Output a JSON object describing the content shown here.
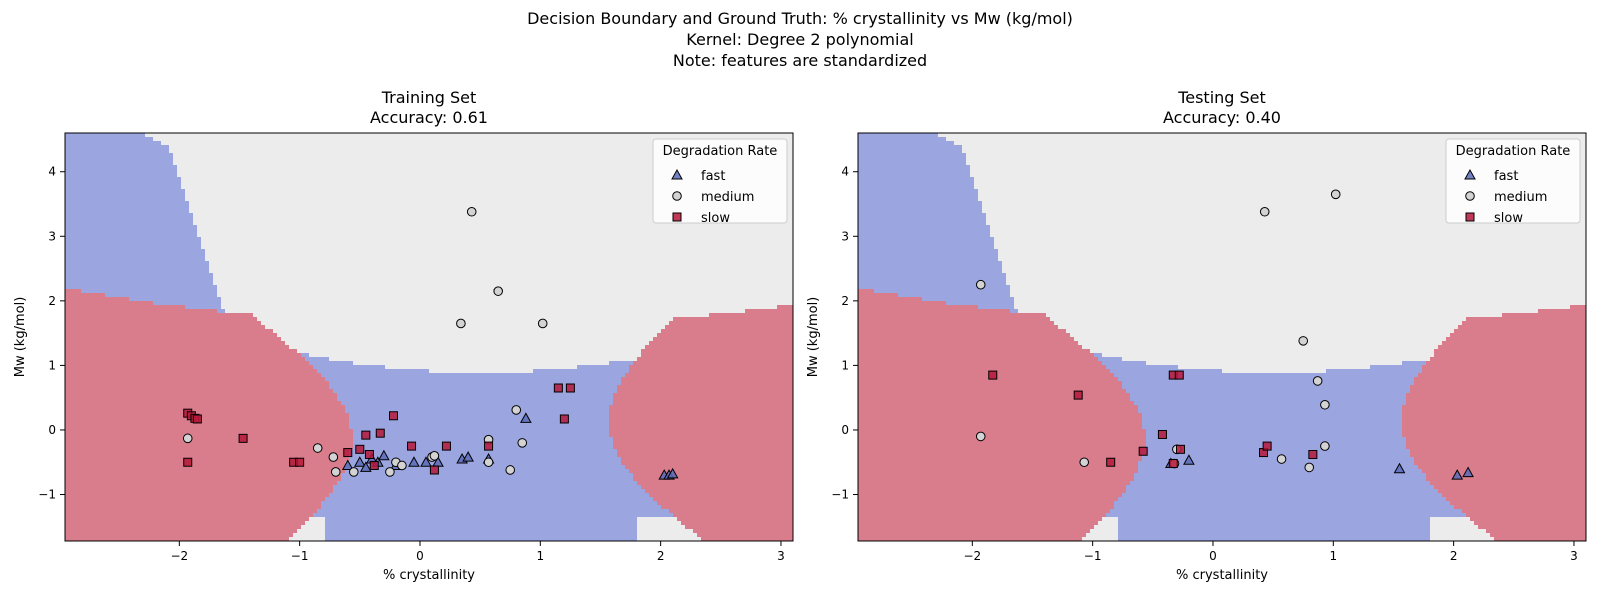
{
  "suptitle": {
    "line1": "Decision Boundary and Ground Truth: % crystallinity vs Mw (kg/mol)",
    "line2": "Kernel: Degree 2 polynomial",
    "line3": "Note: features are standardized"
  },
  "colors": {
    "fast_region": "#9ba5e0",
    "medium_region": "#ececec",
    "slow_region": "#d97c8c",
    "fast_marker": "#5a6bb8",
    "medium_marker": "#d3d3d3",
    "slow_marker": "#b5183a"
  },
  "chart_data": [
    {
      "type": "scatter",
      "title": "Training Set",
      "subtitle": "Accuracy: 0.61",
      "xlabel": "% crystallinity",
      "ylabel": "Mw (kg/mol)",
      "xlim": [
        -2.95,
        3.1
      ],
      "ylim": [
        -1.72,
        4.6
      ],
      "xticks": [
        -2,
        -1,
        0,
        1,
        2,
        3
      ],
      "yticks": [
        -1,
        0,
        1,
        2,
        3,
        4
      ],
      "legend": {
        "title": "Degradation Rate",
        "placement": "top-right",
        "entries": [
          "fast",
          "medium",
          "slow"
        ]
      },
      "regions": {
        "description_classes": [
          "fast",
          "medium",
          "slow"
        ]
      },
      "series": [
        {
          "name": "fast",
          "marker": "triangle",
          "points": [
            [
              -0.6,
              -0.55
            ],
            [
              -0.5,
              -0.5
            ],
            [
              -0.45,
              -0.58
            ],
            [
              -0.4,
              -0.45
            ],
            [
              -0.35,
              -0.5
            ],
            [
              -0.3,
              -0.4
            ],
            [
              -0.2,
              -0.55
            ],
            [
              -0.05,
              -0.5
            ],
            [
              0.05,
              -0.5
            ],
            [
              0.15,
              -0.5
            ],
            [
              0.35,
              -0.45
            ],
            [
              0.4,
              -0.42
            ],
            [
              0.57,
              -0.45
            ],
            [
              0.88,
              0.18
            ],
            [
              2.03,
              -0.7
            ],
            [
              2.07,
              -0.7
            ],
            [
              2.1,
              -0.68
            ]
          ]
        },
        {
          "name": "medium",
          "marker": "circle",
          "points": [
            [
              0.43,
              3.38
            ],
            [
              0.65,
              2.15
            ],
            [
              0.34,
              1.65
            ],
            [
              1.02,
              1.65
            ],
            [
              0.8,
              0.31
            ],
            [
              -1.93,
              -0.13
            ],
            [
              -0.85,
              -0.28
            ],
            [
              -0.7,
              -0.65
            ],
            [
              -0.55,
              -0.65
            ],
            [
              -0.2,
              -0.5
            ],
            [
              -0.15,
              -0.55
            ],
            [
              0.1,
              -0.42
            ],
            [
              0.12,
              -0.4
            ],
            [
              0.57,
              -0.15
            ],
            [
              0.57,
              -0.5
            ],
            [
              0.75,
              -0.62
            ],
            [
              0.85,
              -0.2
            ],
            [
              -0.72,
              -0.42
            ],
            [
              -0.25,
              -0.65
            ]
          ]
        },
        {
          "name": "slow",
          "marker": "square",
          "points": [
            [
              -1.93,
              0.26
            ],
            [
              -1.9,
              0.22
            ],
            [
              -1.87,
              0.18
            ],
            [
              -1.85,
              0.17
            ],
            [
              -1.93,
              -0.5
            ],
            [
              -1.47,
              -0.13
            ],
            [
              -1.05,
              -0.5
            ],
            [
              -1.0,
              -0.5
            ],
            [
              -0.6,
              -0.35
            ],
            [
              -0.5,
              -0.3
            ],
            [
              -0.45,
              -0.08
            ],
            [
              -0.42,
              -0.38
            ],
            [
              -0.38,
              -0.55
            ],
            [
              -0.33,
              -0.05
            ],
            [
              -0.22,
              0.22
            ],
            [
              -0.07,
              -0.25
            ],
            [
              0.12,
              -0.62
            ],
            [
              0.22,
              -0.25
            ],
            [
              0.57,
              -0.25
            ],
            [
              1.15,
              0.65
            ],
            [
              1.25,
              0.65
            ],
            [
              1.2,
              0.17
            ]
          ]
        }
      ]
    },
    {
      "type": "scatter",
      "title": "Testing Set",
      "subtitle": "Accuracy: 0.40",
      "xlabel": "% crystallinity",
      "ylabel": "Mw (kg/mol)",
      "xlim": [
        -2.95,
        3.1
      ],
      "ylim": [
        -1.72,
        4.6
      ],
      "xticks": [
        -2,
        -1,
        0,
        1,
        2,
        3
      ],
      "yticks": [
        -1,
        0,
        1,
        2,
        3,
        4
      ],
      "legend": {
        "title": "Degradation Rate",
        "placement": "top-right",
        "entries": [
          "fast",
          "medium",
          "slow"
        ]
      },
      "regions": {
        "description_classes": [
          "fast",
          "medium",
          "slow"
        ]
      },
      "series": [
        {
          "name": "fast",
          "marker": "triangle",
          "points": [
            [
              -0.35,
              -0.52
            ],
            [
              -0.2,
              -0.47
            ],
            [
              1.55,
              -0.6
            ],
            [
              2.03,
              -0.7
            ],
            [
              2.12,
              -0.66
            ]
          ]
        },
        {
          "name": "medium",
          "marker": "circle",
          "points": [
            [
              0.43,
              3.38
            ],
            [
              1.02,
              3.65
            ],
            [
              -1.93,
              2.25
            ],
            [
              0.75,
              1.38
            ],
            [
              0.87,
              0.76
            ],
            [
              0.93,
              0.39
            ],
            [
              -1.93,
              -0.1
            ],
            [
              -1.07,
              -0.5
            ],
            [
              -0.3,
              -0.3
            ],
            [
              -0.32,
              -0.52
            ],
            [
              0.57,
              -0.45
            ],
            [
              0.8,
              -0.58
            ],
            [
              0.93,
              -0.25
            ]
          ]
        },
        {
          "name": "slow",
          "marker": "square",
          "points": [
            [
              -1.83,
              0.85
            ],
            [
              -1.12,
              0.54
            ],
            [
              -0.33,
              0.85
            ],
            [
              -0.28,
              0.85
            ],
            [
              -0.42,
              -0.07
            ],
            [
              -0.58,
              -0.33
            ],
            [
              -0.27,
              -0.3
            ],
            [
              -0.33,
              -0.52
            ],
            [
              -0.85,
              -0.5
            ],
            [
              0.42,
              -0.35
            ],
            [
              0.45,
              -0.25
            ],
            [
              0.83,
              -0.38
            ]
          ]
        }
      ]
    }
  ]
}
